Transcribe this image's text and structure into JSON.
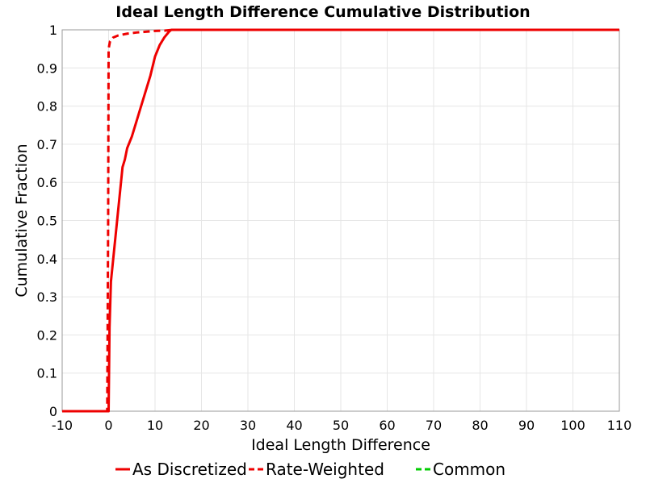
{
  "chart_data": {
    "type": "line",
    "title": "Ideal Length Difference Cumulative Distribution",
    "xlabel": "Ideal Length Difference",
    "ylabel": "Cumulative Fraction",
    "xlim": [
      -10,
      110
    ],
    "ylim": [
      0,
      1
    ],
    "xticks": [
      "-10",
      "0",
      "10",
      "20",
      "30",
      "40",
      "50",
      "60",
      "70",
      "80",
      "90",
      "100",
      "110"
    ],
    "yticks": [
      "0",
      "0.1",
      "0.2",
      "0.3",
      "0.4",
      "0.5",
      "0.6",
      "0.7",
      "0.8",
      "0.9",
      "1"
    ],
    "grid": true,
    "legend_position": "bottom",
    "series": [
      {
        "name": "As Discretized",
        "color": "#ee0000",
        "dash": "solid",
        "x": [
          -10,
          -5,
          0,
          0.2,
          0.5,
          1,
          1.5,
          2,
          2.5,
          3,
          3.5,
          4,
          5,
          6,
          7,
          8,
          9,
          10,
          11,
          12,
          13,
          13.5,
          14,
          20,
          50,
          80,
          110
        ],
        "y": [
          0,
          0,
          0,
          0.22,
          0.34,
          0.4,
          0.46,
          0.52,
          0.58,
          0.64,
          0.66,
          0.69,
          0.72,
          0.76,
          0.8,
          0.84,
          0.88,
          0.93,
          0.96,
          0.98,
          0.995,
          1.0,
          1.0,
          1.0,
          1.0,
          1.0,
          1.0
        ]
      },
      {
        "name": "Rate-Weighted",
        "color": "#ee0000",
        "dash": "dashed",
        "x": [
          -10,
          -5,
          -0.3,
          -0.1,
          0,
          0.3,
          1,
          2,
          4,
          6,
          8,
          10,
          12,
          14,
          20,
          50,
          80,
          110
        ],
        "y": [
          0,
          0,
          0,
          0.5,
          0.95,
          0.97,
          0.98,
          0.985,
          0.99,
          0.993,
          0.995,
          0.997,
          0.998,
          1.0,
          1.0,
          1.0,
          1.0,
          1.0
        ]
      },
      {
        "name": "Common",
        "color": "#00cc00",
        "dash": "dashed",
        "x": [],
        "y": []
      }
    ]
  }
}
